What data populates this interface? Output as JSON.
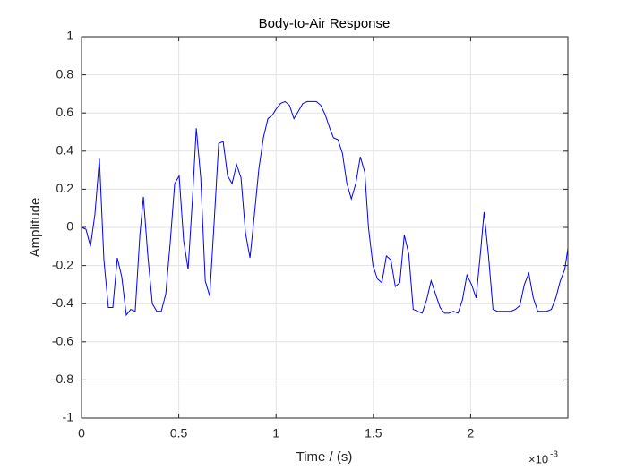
{
  "chart_data": {
    "type": "line",
    "title": "Body-to-Air Response",
    "x_label": "Time / (s)",
    "y_label": "Amplitude",
    "x_multiplier": "×10",
    "x_multiplier_exponent": "-3",
    "xlim": [
      0,
      0.0025
    ],
    "ylim": [
      -1,
      1
    ],
    "xticks": [
      {
        "value": 0,
        "label": "0"
      },
      {
        "value": 0.0005,
        "label": "0.5"
      },
      {
        "value": 0.001,
        "label": "1"
      },
      {
        "value": 0.0015,
        "label": "1.5"
      },
      {
        "value": 0.002,
        "label": "2"
      }
    ],
    "yticks": [
      -1,
      -0.8,
      -0.6,
      -0.4,
      -0.2,
      0,
      0.2,
      0.4,
      0.6,
      0.8,
      1
    ],
    "grid": true,
    "x": [
      0,
      2.3e-05,
      4.6e-05,
      6.9e-05,
      9.2e-05,
      0.000115,
      0.000138,
      0.000161,
      0.000184,
      0.000207,
      0.00023,
      0.000253,
      0.000276,
      0.0003,
      0.000318,
      0.000341,
      0.000364,
      0.000387,
      0.00041,
      0.000433,
      0.000456,
      0.000479,
      0.000502,
      0.000525,
      0.000548,
      0.000571,
      0.00059,
      0.000613,
      0.000636,
      0.000659,
      0.000682,
      0.000705,
      0.000728,
      0.000751,
      0.000774,
      0.000797,
      0.00082,
      0.000843,
      0.000866,
      0.000889,
      0.000912,
      0.000935,
      0.000958,
      0.000982,
      0.001,
      0.001023,
      0.001046,
      0.001069,
      0.001092,
      0.001115,
      0.001138,
      0.001161,
      0.001184,
      0.001207,
      0.00123,
      0.001253,
      0.001276,
      0.001295,
      0.001318,
      0.001341,
      0.001364,
      0.001387,
      0.00141,
      0.001433,
      0.001456,
      0.001475,
      0.001498,
      0.001521,
      0.001544,
      0.001567,
      0.00159,
      0.001613,
      0.001636,
      0.001659,
      0.001682,
      0.001705,
      0.001728,
      0.001751,
      0.001774,
      0.001797,
      0.00182,
      0.001843,
      0.001866,
      0.001889,
      0.001912,
      0.001935,
      0.001958,
      0.001981,
      0.002005,
      0.002028,
      0.002051,
      0.002069,
      0.002092,
      0.002115,
      0.002138,
      0.002161,
      0.002184,
      0.002207,
      0.00223,
      0.002253,
      0.002276,
      0.002299,
      0.002322,
      0.002345,
      0.002368,
      0.002391,
      0.002415,
      0.002438,
      0.002461,
      0.002484,
      0.0025
    ],
    "series": [
      {
        "color": "#0000ff",
        "values": [
          0,
          -0.01,
          -0.1,
          0.07,
          0.36,
          -0.17,
          -0.42,
          -0.42,
          -0.16,
          -0.26,
          -0.46,
          -0.43,
          -0.44,
          -0.04,
          0.16,
          -0.15,
          -0.4,
          -0.44,
          -0.44,
          -0.35,
          -0.08,
          0.23,
          0.27,
          -0.07,
          -0.22,
          0.16,
          0.52,
          0.26,
          -0.28,
          -0.36,
          0.03,
          0.44,
          0.45,
          0.27,
          0.23,
          0.33,
          0.26,
          -0.03,
          -0.16,
          0.07,
          0.31,
          0.47,
          0.57,
          0.59,
          0.62,
          0.65,
          0.66,
          0.64,
          0.57,
          0.61,
          0.65,
          0.66,
          0.66,
          0.66,
          0.64,
          0.59,
          0.52,
          0.47,
          0.46,
          0.39,
          0.23,
          0.15,
          0.23,
          0.37,
          0.29,
          0,
          -0.2,
          -0.27,
          -0.29,
          -0.15,
          -0.17,
          -0.31,
          -0.29,
          -0.04,
          -0.14,
          -0.43,
          -0.44,
          -0.45,
          -0.38,
          -0.28,
          -0.35,
          -0.42,
          -0.45,
          -0.45,
          -0.44,
          -0.45,
          -0.38,
          -0.25,
          -0.3,
          -0.37,
          -0.13,
          0.08,
          -0.15,
          -0.43,
          -0.44,
          -0.44,
          -0.44,
          -0.44,
          -0.43,
          -0.41,
          -0.3,
          -0.24,
          -0.37,
          -0.44,
          -0.44,
          -0.44,
          -0.43,
          -0.37,
          -0.28,
          -0.22,
          -0.11
        ]
      }
    ]
  }
}
